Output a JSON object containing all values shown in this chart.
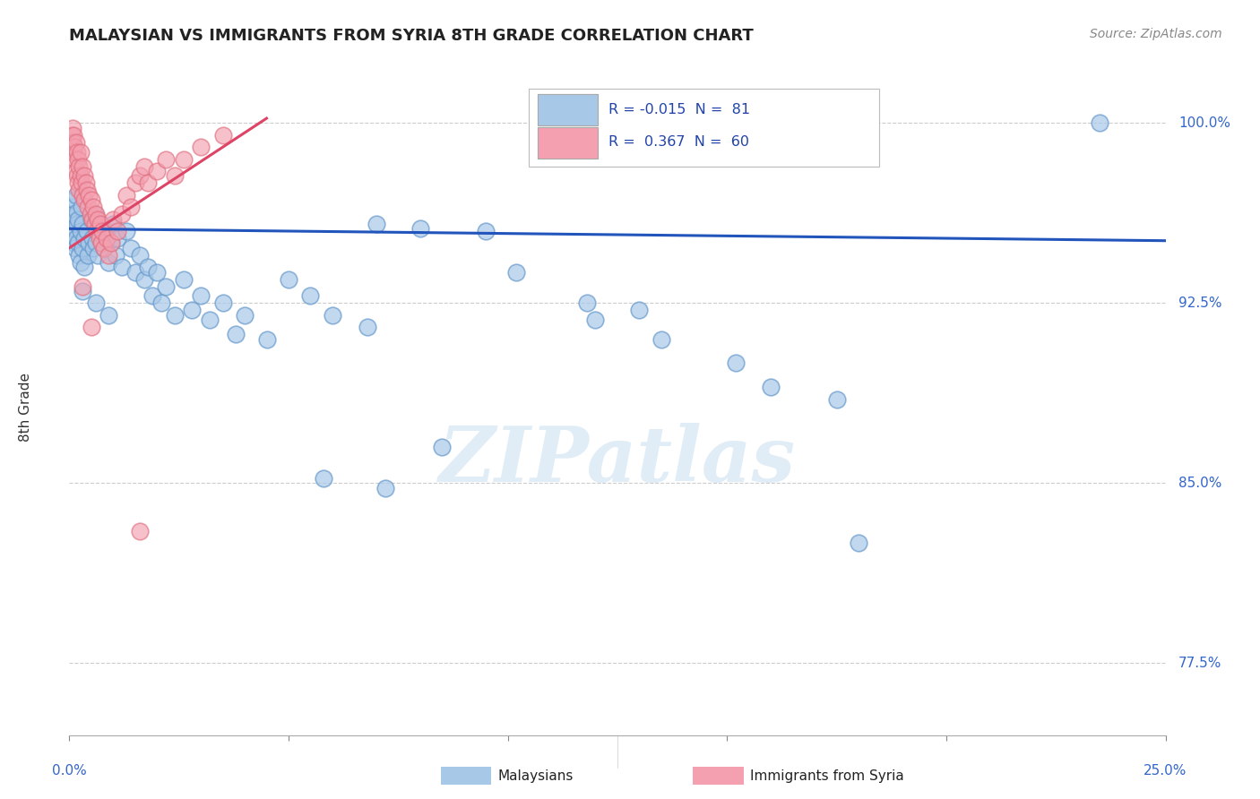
{
  "title": "MALAYSIAN VS IMMIGRANTS FROM SYRIA 8TH GRADE CORRELATION CHART",
  "source": "Source: ZipAtlas.com",
  "ylabel": "8th Grade",
  "yticks": [
    77.5,
    85.0,
    92.5,
    100.0
  ],
  "ytick_labels": [
    "77.5%",
    "85.0%",
    "92.5%",
    "100.0%"
  ],
  "xlim": [
    0.0,
    25.0
  ],
  "ylim": [
    74.5,
    101.8
  ],
  "watermark": "ZIPatlas",
  "blue_color": "#a8c8e8",
  "blue_edge_color": "#6699cc",
  "pink_color": "#f4a0b0",
  "pink_edge_color": "#e07080",
  "blue_line_color": "#2255bb",
  "pink_line_color": "#dd4466",
  "blue_pts": [
    [
      0.05,
      95.8
    ],
    [
      0.07,
      96.5
    ],
    [
      0.08,
      95.5
    ],
    [
      0.1,
      96.2
    ],
    [
      0.1,
      95.0
    ],
    [
      0.12,
      96.8
    ],
    [
      0.12,
      95.6
    ],
    [
      0.13,
      94.8
    ],
    [
      0.15,
      97.0
    ],
    [
      0.15,
      95.2
    ],
    [
      0.17,
      96.3
    ],
    [
      0.18,
      95.8
    ],
    [
      0.2,
      96.0
    ],
    [
      0.2,
      95.0
    ],
    [
      0.22,
      94.5
    ],
    [
      0.25,
      95.5
    ],
    [
      0.25,
      94.2
    ],
    [
      0.28,
      96.5
    ],
    [
      0.3,
      95.8
    ],
    [
      0.3,
      94.8
    ],
    [
      0.35,
      95.2
    ],
    [
      0.35,
      94.0
    ],
    [
      0.4,
      95.5
    ],
    [
      0.42,
      94.5
    ],
    [
      0.45,
      95.0
    ],
    [
      0.5,
      96.0
    ],
    [
      0.52,
      95.2
    ],
    [
      0.55,
      94.8
    ],
    [
      0.58,
      96.2
    ],
    [
      0.6,
      95.0
    ],
    [
      0.65,
      94.5
    ],
    [
      0.7,
      95.8
    ],
    [
      0.75,
      95.0
    ],
    [
      0.8,
      94.8
    ],
    [
      0.85,
      95.5
    ],
    [
      0.9,
      94.2
    ],
    [
      0.95,
      95.0
    ],
    [
      1.0,
      95.8
    ],
    [
      1.05,
      94.5
    ],
    [
      1.1,
      95.2
    ],
    [
      1.2,
      94.0
    ],
    [
      1.3,
      95.5
    ],
    [
      1.4,
      94.8
    ],
    [
      1.5,
      93.8
    ],
    [
      1.6,
      94.5
    ],
    [
      1.7,
      93.5
    ],
    [
      1.8,
      94.0
    ],
    [
      1.9,
      92.8
    ],
    [
      2.0,
      93.8
    ],
    [
      2.1,
      92.5
    ],
    [
      2.2,
      93.2
    ],
    [
      2.4,
      92.0
    ],
    [
      2.6,
      93.5
    ],
    [
      2.8,
      92.2
    ],
    [
      3.0,
      92.8
    ],
    [
      3.2,
      91.8
    ],
    [
      3.5,
      92.5
    ],
    [
      3.8,
      91.2
    ],
    [
      4.0,
      92.0
    ],
    [
      4.5,
      91.0
    ],
    [
      5.0,
      93.5
    ],
    [
      5.5,
      92.8
    ],
    [
      6.0,
      92.0
    ],
    [
      6.8,
      91.5
    ],
    [
      7.0,
      95.8
    ],
    [
      8.0,
      95.6
    ],
    [
      9.5,
      95.5
    ],
    [
      10.2,
      93.8
    ],
    [
      11.8,
      92.5
    ],
    [
      12.0,
      91.8
    ],
    [
      13.0,
      92.2
    ],
    [
      13.5,
      91.0
    ],
    [
      15.2,
      90.0
    ],
    [
      16.0,
      89.0
    ],
    [
      17.5,
      88.5
    ],
    [
      5.8,
      85.2
    ],
    [
      7.2,
      84.8
    ],
    [
      8.5,
      86.5
    ],
    [
      18.0,
      82.5
    ],
    [
      23.5,
      100.0
    ],
    [
      0.3,
      93.0
    ],
    [
      0.6,
      92.5
    ],
    [
      0.9,
      92.0
    ]
  ],
  "pink_pts": [
    [
      0.05,
      99.5
    ],
    [
      0.07,
      99.8
    ],
    [
      0.08,
      99.2
    ],
    [
      0.1,
      99.5
    ],
    [
      0.1,
      98.8
    ],
    [
      0.12,
      99.0
    ],
    [
      0.13,
      98.5
    ],
    [
      0.15,
      99.2
    ],
    [
      0.15,
      98.0
    ],
    [
      0.17,
      98.8
    ],
    [
      0.18,
      97.8
    ],
    [
      0.2,
      98.5
    ],
    [
      0.2,
      97.5
    ],
    [
      0.22,
      98.2
    ],
    [
      0.22,
      97.2
    ],
    [
      0.25,
      98.8
    ],
    [
      0.25,
      97.8
    ],
    [
      0.28,
      97.5
    ],
    [
      0.3,
      98.2
    ],
    [
      0.3,
      97.0
    ],
    [
      0.35,
      97.8
    ],
    [
      0.35,
      96.8
    ],
    [
      0.38,
      97.5
    ],
    [
      0.4,
      97.2
    ],
    [
      0.42,
      96.5
    ],
    [
      0.45,
      97.0
    ],
    [
      0.48,
      96.2
    ],
    [
      0.5,
      96.8
    ],
    [
      0.52,
      96.0
    ],
    [
      0.55,
      96.5
    ],
    [
      0.58,
      95.8
    ],
    [
      0.6,
      96.2
    ],
    [
      0.62,
      95.5
    ],
    [
      0.65,
      96.0
    ],
    [
      0.68,
      95.2
    ],
    [
      0.7,
      95.8
    ],
    [
      0.72,
      95.0
    ],
    [
      0.75,
      95.5
    ],
    [
      0.8,
      94.8
    ],
    [
      0.85,
      95.2
    ],
    [
      0.9,
      94.5
    ],
    [
      0.95,
      95.0
    ],
    [
      1.0,
      96.0
    ],
    [
      1.1,
      95.5
    ],
    [
      1.2,
      96.2
    ],
    [
      1.3,
      97.0
    ],
    [
      1.4,
      96.5
    ],
    [
      1.5,
      97.5
    ],
    [
      1.6,
      97.8
    ],
    [
      1.7,
      98.2
    ],
    [
      1.8,
      97.5
    ],
    [
      2.0,
      98.0
    ],
    [
      2.2,
      98.5
    ],
    [
      2.4,
      97.8
    ],
    [
      2.6,
      98.5
    ],
    [
      3.0,
      99.0
    ],
    [
      3.5,
      99.5
    ],
    [
      0.5,
      91.5
    ],
    [
      1.6,
      83.0
    ],
    [
      0.3,
      93.2
    ]
  ],
  "blue_line_x": [
    0.0,
    25.0
  ],
  "blue_line_y": [
    95.6,
    95.1
  ],
  "pink_line_x": [
    0.0,
    4.5
  ],
  "pink_line_y": [
    94.8,
    100.2
  ]
}
